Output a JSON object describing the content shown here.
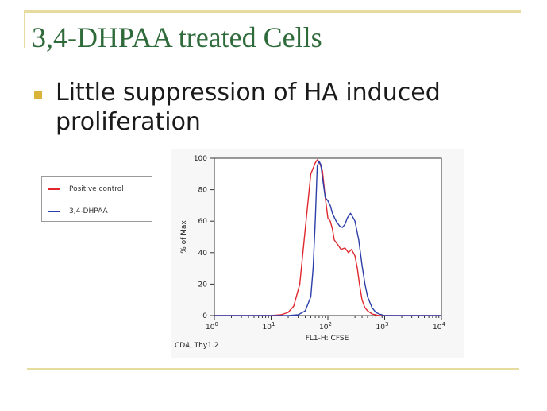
{
  "slide": {
    "title": "3,4-DHPAA treated Cells",
    "bullet": "Little suppression of HA induced proliferation"
  },
  "chart_data": {
    "type": "line",
    "title": "",
    "xlabel": "FL1-H: CFSE",
    "ylabel": "% of Max",
    "gate_label": "CD4, Thy1.2",
    "x_scale": "log",
    "xlim": [
      1,
      10000
    ],
    "ylim": [
      0,
      100
    ],
    "x_ticks": [
      {
        "value": 1,
        "base": "10",
        "exp": "0"
      },
      {
        "value": 10,
        "base": "10",
        "exp": "1"
      },
      {
        "value": 100,
        "base": "10",
        "exp": "2"
      },
      {
        "value": 1000,
        "base": "10",
        "exp": "3"
      },
      {
        "value": 10000,
        "base": "10",
        "exp": "4"
      }
    ],
    "y_ticks": [
      0,
      20,
      40,
      60,
      80,
      100
    ],
    "legend_position": "left",
    "series": [
      {
        "name": "Positive control",
        "color": "#e0272e",
        "x": [
          1,
          3,
          10,
          15,
          20,
          25,
          32,
          40,
          50,
          60,
          65,
          70,
          80,
          90,
          100,
          110,
          120,
          130,
          150,
          170,
          200,
          230,
          260,
          280,
          300,
          330,
          360,
          400,
          450,
          500,
          600,
          800,
          1000,
          10000
        ],
        "y": [
          0,
          0,
          0,
          0.5,
          2,
          6,
          20,
          55,
          90,
          97,
          99,
          98,
          92,
          75,
          62,
          60,
          55,
          48,
          45,
          42,
          43,
          40,
          42,
          40,
          38,
          30,
          20,
          10,
          5,
          3,
          1,
          0,
          0,
          0
        ]
      },
      {
        "name": "3,4-DHPAA",
        "color": "#2c3fa8",
        "x": [
          1,
          3,
          10,
          20,
          30,
          40,
          50,
          55,
          60,
          65,
          70,
          75,
          80,
          90,
          100,
          110,
          120,
          140,
          160,
          180,
          200,
          220,
          250,
          280,
          300,
          350,
          400,
          450,
          500,
          600,
          700,
          800,
          1000,
          10000
        ],
        "y": [
          0,
          0,
          0,
          0,
          0.5,
          3,
          12,
          30,
          60,
          95,
          98,
          96,
          88,
          75,
          73,
          70,
          65,
          60,
          57,
          56,
          58,
          62,
          65,
          62,
          60,
          48,
          32,
          20,
          12,
          5,
          2,
          1,
          0,
          0
        ]
      }
    ]
  }
}
